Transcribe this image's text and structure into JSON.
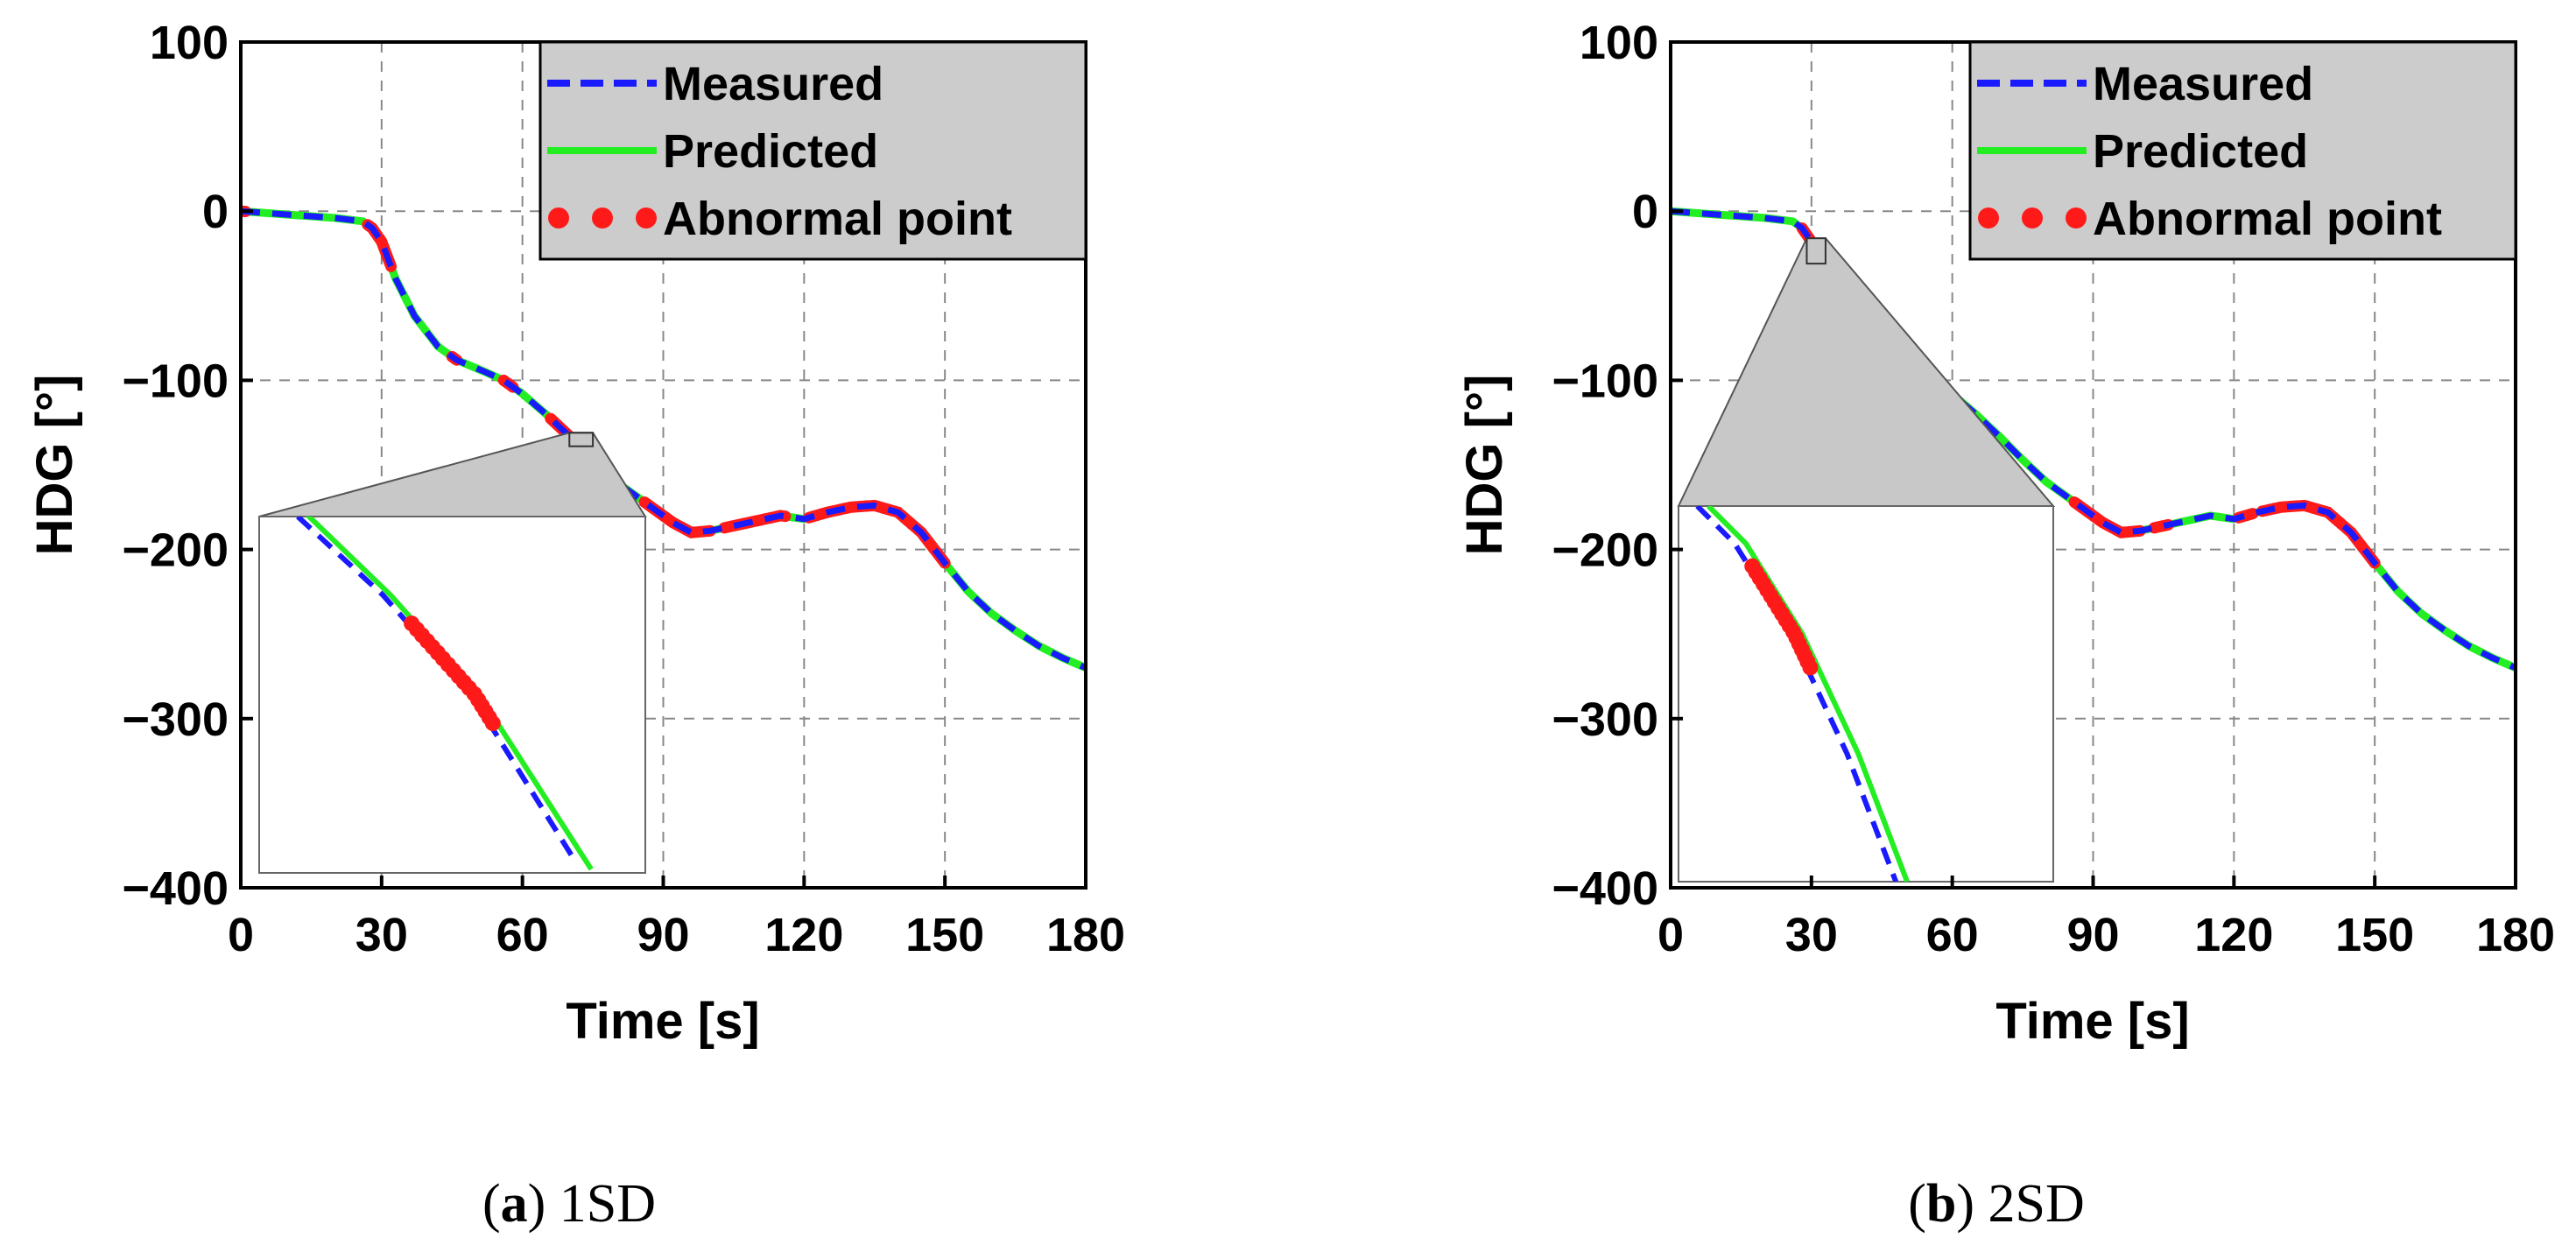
{
  "colors": {
    "measured": "#1a1aff",
    "predicted": "#22ee22",
    "abnormal": "#ff1a1a",
    "legend_bg": "#cccccc",
    "grid": "#888888"
  },
  "chart_data": [
    {
      "type": "line",
      "panel_label": "a",
      "caption": "1SD",
      "xlabel": "Time [s]",
      "ylabel": "HDG [°]",
      "xlim": [
        0,
        180
      ],
      "ylim": [
        -400,
        100
      ],
      "xticks": [
        0,
        30,
        60,
        90,
        120,
        150,
        180
      ],
      "yticks": [
        100,
        0,
        -100,
        -200,
        -300,
        -400
      ],
      "xtick_labels": [
        "0",
        "30",
        "60",
        "90",
        "120",
        "150",
        "180"
      ],
      "ytick_labels": [
        "100",
        "0",
        "−100",
        "−200",
        "−300",
        "−400"
      ],
      "grid": true,
      "legend": {
        "position": "top-right",
        "entries": [
          "Measured",
          "Predicted",
          "Abnormal point"
        ]
      },
      "series": [
        {
          "name": "Measured",
          "style": "dashed",
          "x": [
            0,
            10,
            20,
            26,
            28,
            30,
            33,
            37,
            42,
            46,
            52,
            56,
            60,
            65,
            70,
            75,
            80,
            85,
            88,
            92,
            96,
            100,
            105,
            110,
            115,
            120,
            125,
            130,
            135,
            140,
            145,
            150,
            155,
            160,
            165,
            170,
            175,
            180
          ],
          "y": [
            0,
            -2,
            -4,
            -6,
            -10,
            -18,
            -40,
            -62,
            -80,
            -88,
            -95,
            -100,
            -108,
            -120,
            -133,
            -147,
            -160,
            -170,
            -176,
            -184,
            -190,
            -189,
            -186,
            -183,
            -180,
            -182,
            -178,
            -175,
            -174,
            -178,
            -190,
            -208,
            -225,
            -238,
            -248,
            -257,
            -264,
            -270
          ]
        },
        {
          "name": "Predicted",
          "style": "solid",
          "x": [
            0,
            10,
            20,
            26,
            28,
            30,
            33,
            37,
            42,
            46,
            52,
            56,
            60,
            65,
            70,
            75,
            80,
            85,
            88,
            92,
            96,
            100,
            105,
            110,
            115,
            120,
            125,
            130,
            135,
            140,
            145,
            150,
            155,
            160,
            165,
            170,
            175,
            180
          ],
          "y": [
            0,
            -2,
            -4,
            -6,
            -10,
            -18,
            -40,
            -62,
            -80,
            -88,
            -95,
            -100,
            -108,
            -120,
            -133,
            -147,
            -160,
            -170,
            -176,
            -184,
            -190,
            -189,
            -186,
            -183,
            -180,
            -182,
            -178,
            -175,
            -174,
            -178,
            -190,
            -208,
            -225,
            -238,
            -248,
            -257,
            -264,
            -270
          ]
        },
        {
          "name": "Abnormal point",
          "style": "dotted",
          "segments": [
            [
              0,
              1
            ],
            [
              27,
              32
            ],
            [
              45,
              46
            ],
            [
              56,
              58
            ],
            [
              66,
              76
            ],
            [
              86,
              100
            ],
            [
              103,
              116
            ],
            [
              121,
              150
            ]
          ]
        }
      ],
      "inset": {
        "zoom_x": [
          70,
          75
        ],
        "zoom_y": [
          -139,
          -131
        ],
        "measured": [
          [
            0.1,
            0.0
          ],
          [
            0.32,
            0.22
          ],
          [
            0.55,
            0.5
          ],
          [
            0.82,
            0.97
          ]
        ],
        "predicted": [
          [
            0.11,
            -0.02
          ],
          [
            0.34,
            0.22
          ],
          [
            0.57,
            0.5
          ],
          [
            0.86,
            0.99
          ]
        ],
        "abnormal_range": [
          0.3,
          0.58
        ]
      }
    },
    {
      "type": "line",
      "panel_label": "b",
      "caption": "2SD",
      "xlabel": "Time [s]",
      "ylabel": "HDG [°]",
      "xlim": [
        0,
        180
      ],
      "ylim": [
        -400,
        100
      ],
      "xticks": [
        0,
        30,
        60,
        90,
        120,
        150,
        180
      ],
      "yticks": [
        100,
        0,
        -100,
        -200,
        -300,
        -400
      ],
      "xtick_labels": [
        "0",
        "30",
        "60",
        "90",
        "120",
        "150",
        "180"
      ],
      "ytick_labels": [
        "100",
        "0",
        "−100",
        "−200",
        "−300",
        "−400"
      ],
      "grid": true,
      "legend": {
        "position": "top-right",
        "entries": [
          "Measured",
          "Predicted",
          "Abnormal point"
        ]
      },
      "series": [
        {
          "name": "Measured",
          "style": "dashed",
          "x": [
            0,
            10,
            20,
            26,
            28,
            30,
            33,
            37,
            42,
            46,
            52,
            56,
            60,
            65,
            70,
            75,
            80,
            85,
            88,
            92,
            96,
            100,
            105,
            110,
            115,
            120,
            125,
            130,
            135,
            140,
            145,
            150,
            155,
            160,
            165,
            170,
            175,
            180
          ],
          "y": [
            0,
            -2,
            -4,
            -6,
            -10,
            -18,
            -40,
            -62,
            -80,
            -88,
            -95,
            -100,
            -108,
            -120,
            -133,
            -147,
            -160,
            -170,
            -176,
            -184,
            -190,
            -189,
            -186,
            -183,
            -180,
            -182,
            -178,
            -175,
            -174,
            -178,
            -190,
            -208,
            -225,
            -238,
            -248,
            -257,
            -264,
            -270
          ]
        },
        {
          "name": "Predicted",
          "style": "solid",
          "x": [
            0,
            10,
            20,
            26,
            28,
            30,
            33,
            37,
            42,
            46,
            52,
            56,
            60,
            65,
            70,
            75,
            80,
            85,
            88,
            92,
            96,
            100,
            105,
            110,
            115,
            120,
            125,
            130,
            135,
            140,
            145,
            150,
            155,
            160,
            165,
            170,
            175,
            180
          ],
          "y": [
            0,
            -2,
            -4,
            -6,
            -10,
            -18,
            -40,
            -62,
            -80,
            -88,
            -95,
            -100,
            -108,
            -120,
            -133,
            -147,
            -160,
            -170,
            -176,
            -184,
            -190,
            -189,
            -186,
            -183,
            -180,
            -182,
            -178,
            -175,
            -174,
            -178,
            -190,
            -208,
            -225,
            -238,
            -248,
            -257,
            -264,
            -270
          ]
        },
        {
          "name": "Abnormal point",
          "style": "dotted",
          "segments": [
            [
              28,
              32
            ],
            [
              86,
              100
            ],
            [
              103,
              106
            ],
            [
              121,
              124
            ],
            [
              126,
              150
            ]
          ]
        }
      ],
      "inset": {
        "zoom_x": [
          29,
          33
        ],
        "zoom_y": [
          -31,
          -16
        ],
        "measured": [
          [
            0.05,
            0.0
          ],
          [
            0.15,
            0.1
          ],
          [
            0.3,
            0.34
          ],
          [
            0.45,
            0.66
          ],
          [
            0.58,
            1.0
          ]
        ],
        "predicted": [
          [
            0.08,
            0.0
          ],
          [
            0.18,
            0.1
          ],
          [
            0.33,
            0.34
          ],
          [
            0.48,
            0.66
          ],
          [
            0.61,
            1.0
          ]
        ],
        "abnormal_range": [
          0.16,
          0.43
        ]
      }
    }
  ]
}
